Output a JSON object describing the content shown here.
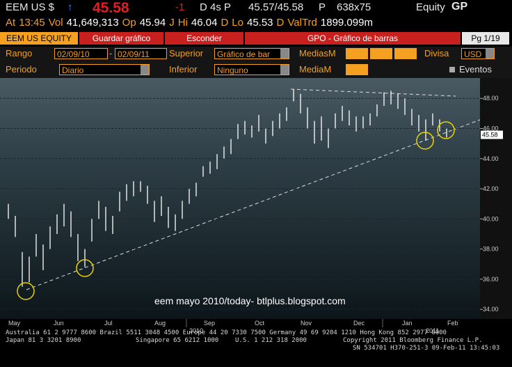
{
  "header": {
    "ticker": "EEM US $",
    "price": "45.58",
    "change": "-1",
    "delay": "D 4s P",
    "bid_ask": "45.57/45.58",
    "p_flag": "P",
    "size": "638x75",
    "market": "Equity",
    "function": "GP"
  },
  "quote_bar": [
    "At",
    "13:45",
    "Vol",
    "41,649,313",
    "Op",
    "45.94",
    "J",
    "Hi",
    "46.04",
    "D",
    "Lo",
    "45.53",
    "D",
    "ValTrd",
    "1899.099m"
  ],
  "tabs": [
    "EEM US EQUITY",
    "Guardar gráfico",
    "Esconder",
    "GPO - Gráfico de barras",
    "Pg 1/19"
  ],
  "controls": {
    "range_label": "Rango",
    "range_from": "02/09/10",
    "range_sep": "-",
    "range_to": "02/09/11",
    "upper_label": "Superior",
    "upper_value": "Gráfico de bar",
    "ma_label": "MediasM",
    "currency_label": "Divisa",
    "currency_value": "USD",
    "period_label": "Periodo",
    "period_value": "Diario",
    "lower_label": "Inferior",
    "lower_value": "Ninguno",
    "ma2_label": "MediaM",
    "events_label": "Eventos"
  },
  "chart_data": {
    "type": "hilo",
    "annotation": "eem mayo 2010/today- btlplus.blogspot.com",
    "months": [
      "May",
      "Jun",
      "Jul",
      "Aug",
      "Sep",
      "Oct",
      "Nov",
      "Dec",
      "Jan",
      "Feb"
    ],
    "years": [
      "2010",
      "2011"
    ],
    "color": "#ffffff",
    "highs": [
      41,
      40.2,
      37.8,
      37.5,
      39,
      38.3,
      39.5,
      40.3,
      41,
      40.5,
      39,
      38,
      40,
      41.2,
      40.8,
      40.2,
      41.8,
      42.3,
      42.5,
      42.5,
      42.2,
      41.2,
      41.5,
      40.8,
      40.3,
      41.2,
      42,
      42.4,
      43.5,
      43.8,
      44.3,
      44.8,
      45.3,
      46.3,
      46.5,
      46.2,
      46.9,
      46,
      46.5,
      47,
      47.4,
      48.6,
      48.3,
      47.4,
      46.5,
      46.8,
      46,
      47,
      47.5,
      47.2,
      46.8,
      46.8,
      47,
      47.6,
      48.4,
      48.5,
      48.3,
      48,
      47.3,
      46.9,
      46.6,
      47,
      46.6,
      46
    ],
    "lows": [
      40,
      38.8,
      35.5,
      35.8,
      37.5,
      36.6,
      38,
      39,
      39.5,
      38.8,
      37.2,
      36.8,
      38.5,
      40,
      39.2,
      39,
      40.5,
      41.2,
      41.5,
      41.8,
      41,
      39.8,
      40.2,
      39.4,
      39.2,
      40,
      41,
      41.5,
      42.8,
      43,
      43.3,
      44,
      44.3,
      45.3,
      45.6,
      45.4,
      45.8,
      45,
      45.5,
      46,
      46.5,
      47.8,
      47,
      46,
      45,
      45.2,
      44.7,
      46,
      46.5,
      46.2,
      45.8,
      46,
      46.2,
      46.8,
      47.5,
      47.6,
      47.3,
      46.9,
      46.2,
      45.8,
      45.2,
      46.2,
      45.8,
      45.4
    ],
    "last_value": 45.58,
    "ylim": [
      33.5,
      49.35
    ],
    "yticks": [
      {
        "value": 34,
        "label": "34.00"
      },
      {
        "value": 36,
        "label": "36.00"
      },
      {
        "value": 38,
        "label": "38.00"
      },
      {
        "value": 40,
        "label": "40.00"
      },
      {
        "value": 42,
        "label": "42.00"
      },
      {
        "value": 44,
        "label": "44.00"
      },
      {
        "value": 46,
        "label": "46.00"
      },
      {
        "value": 48,
        "label": "48.00"
      }
    ],
    "grid": true
  },
  "footer": {
    "line1": "Australia 61 2 9777 8600 Brazil 5511 3048 4500 Europe 44 20 7330 7500 Germany 49 69 9204 1210 Hong Kong 852 2977 6000",
    "line2": [
      "Japan 81 3 3201 8900",
      "Singapore 65 6212 1000",
      "U.S. 1 212 318 2000",
      "Copyright 2011 Bloomberg Finance L.P."
    ],
    "line3": "SN 534701 H370-251-3 09-Feb-11 13:45:03"
  }
}
